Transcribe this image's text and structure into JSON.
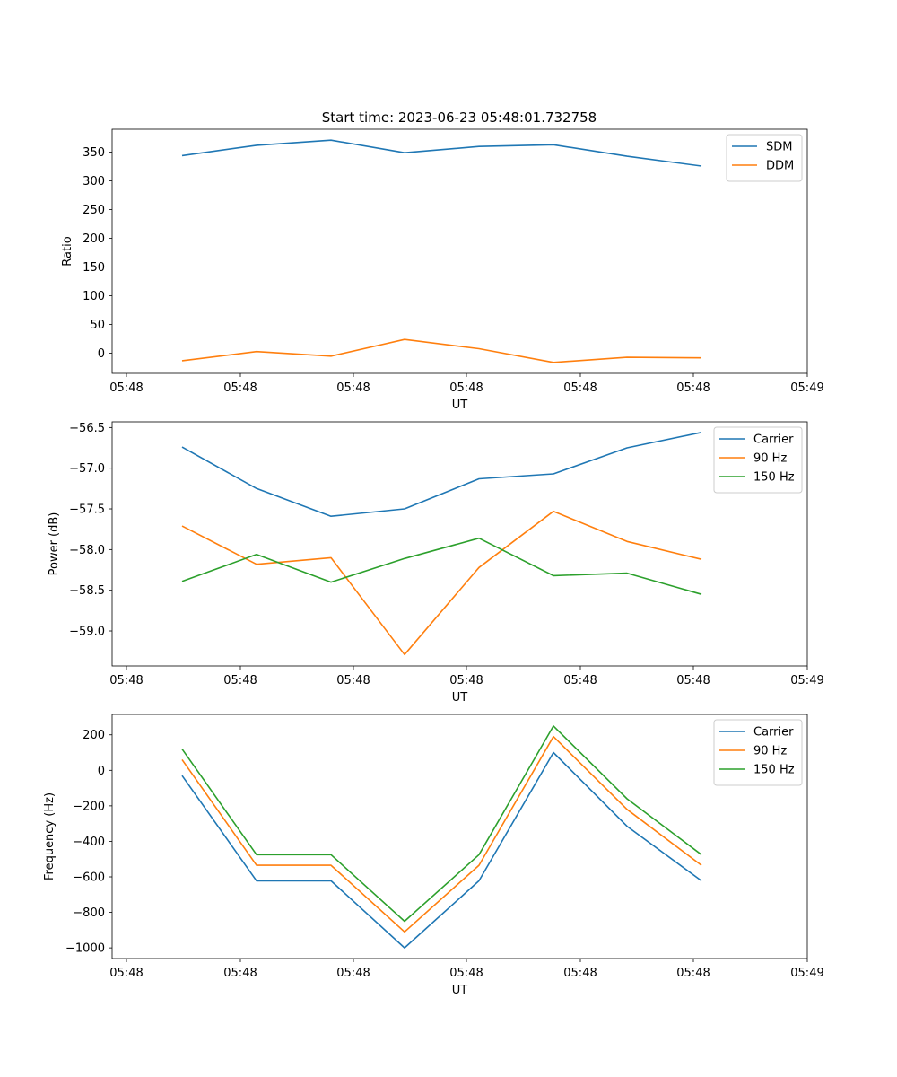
{
  "title": "Start time: 2023-06-23 05:48:01.732758",
  "colors": {
    "blue": "#1f77b4",
    "orange": "#ff7f0e",
    "green": "#2ca02c"
  },
  "x_tick_labels": [
    "05:48",
    "05:48",
    "05:48",
    "05:48",
    "05:48",
    "05:48",
    "05:49"
  ],
  "chart_data": [
    {
      "type": "line",
      "xlabel": "UT",
      "ylabel": "Ratio",
      "ylim": [
        -35,
        390
      ],
      "yticks": [
        0,
        50,
        100,
        150,
        200,
        250,
        300,
        350
      ],
      "legend": "top-right",
      "series": [
        {
          "name": "SDM",
          "color": "#1f77b4",
          "values": [
            344,
            362,
            371,
            349,
            360,
            363,
            343,
            326
          ]
        },
        {
          "name": "DDM",
          "color": "#ff7f0e",
          "values": [
            -13,
            3,
            -5,
            24,
            8,
            -16,
            -7,
            -8
          ]
        }
      ]
    },
    {
      "type": "line",
      "xlabel": "UT",
      "ylabel": "Power (dB)",
      "ylim": [
        -59.43,
        -56.43
      ],
      "yticks": [
        -59.0,
        -58.5,
        -58.0,
        -57.5,
        -57.0,
        -56.5
      ],
      "legend": "top-right",
      "series": [
        {
          "name": "Carrier",
          "color": "#1f77b4",
          "values": [
            -56.74,
            -57.25,
            -57.59,
            -57.5,
            -57.13,
            -57.07,
            -56.75,
            -56.56
          ]
        },
        {
          "name": "90 Hz",
          "color": "#ff7f0e",
          "values": [
            -57.71,
            -58.18,
            -58.1,
            -59.29,
            -58.22,
            -57.53,
            -57.9,
            -58.12
          ]
        },
        {
          "name": "150 Hz",
          "color": "#2ca02c",
          "values": [
            -58.39,
            -58.06,
            -58.4,
            -58.11,
            -57.86,
            -58.32,
            -58.29,
            -58.55
          ]
        }
      ]
    },
    {
      "type": "line",
      "xlabel": "UT",
      "ylabel": "Frequency (Hz)",
      "ylim": [
        -1060,
        315
      ],
      "yticks": [
        -1000,
        -800,
        -600,
        -400,
        -200,
        0,
        200
      ],
      "legend": "top-right",
      "series": [
        {
          "name": "Carrier",
          "color": "#1f77b4",
          "values": [
            -30,
            -622,
            -622,
            -1000,
            -622,
            100,
            -315,
            -622
          ]
        },
        {
          "name": "90 Hz",
          "color": "#ff7f0e",
          "values": [
            60,
            -535,
            -535,
            -910,
            -535,
            190,
            -220,
            -535
          ]
        },
        {
          "name": "150 Hz",
          "color": "#2ca02c",
          "values": [
            120,
            -475,
            -475,
            -850,
            -475,
            250,
            -160,
            -475
          ]
        }
      ]
    }
  ]
}
